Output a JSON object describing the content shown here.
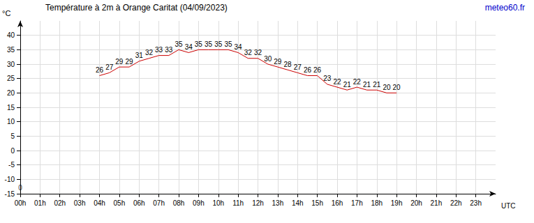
{
  "chart_data": {
    "type": "line",
    "title": "Température à 2m à Orange Caritat (04/09/2023)",
    "source": "meteo60.fr",
    "y_label": "°C",
    "x_label": "UTC",
    "x": [
      4,
      4.5,
      5,
      5.5,
      6,
      6.5,
      7,
      7.5,
      8,
      8.5,
      9,
      9.5,
      10,
      10.5,
      11,
      11.5,
      12,
      12.5,
      13,
      13.5,
      14,
      14.5,
      15,
      15.5,
      16,
      16.5,
      17,
      17.5,
      18,
      18.5,
      19
    ],
    "values": [
      26,
      27,
      29,
      29,
      31,
      32,
      33,
      33,
      35,
      34,
      35,
      35,
      35,
      35,
      34,
      32,
      32,
      30,
      29,
      28,
      27,
      26,
      26,
      23,
      22,
      21,
      22,
      21,
      21,
      20,
      20
    ],
    "color": "#cc0000",
    "data_labels": true,
    "xlim": [
      0,
      24
    ],
    "xticks": [
      {
        "value": 0,
        "label": "00h"
      },
      {
        "value": 1,
        "label": "01h"
      },
      {
        "value": 2,
        "label": "02h"
      },
      {
        "value": 3,
        "label": "03h"
      },
      {
        "value": 4,
        "label": "04h"
      },
      {
        "value": 5,
        "label": "05h"
      },
      {
        "value": 6,
        "label": "06h"
      },
      {
        "value": 7,
        "label": "07h"
      },
      {
        "value": 8,
        "label": "08h"
      },
      {
        "value": 9,
        "label": "09h"
      },
      {
        "value": 10,
        "label": "10h"
      },
      {
        "value": 11,
        "label": "11h"
      },
      {
        "value": 12,
        "label": "12h"
      },
      {
        "value": 13,
        "label": "13h"
      },
      {
        "value": 14,
        "label": "14h"
      },
      {
        "value": 15,
        "label": "15h"
      },
      {
        "value": 16,
        "label": "16h"
      },
      {
        "value": 17,
        "label": "17h"
      },
      {
        "value": 18,
        "label": "18h"
      },
      {
        "value": 19,
        "label": "19h"
      },
      {
        "value": 20,
        "label": "20h"
      },
      {
        "value": 21,
        "label": "21h"
      },
      {
        "value": 22,
        "label": "22h"
      },
      {
        "value": 23,
        "label": "23h"
      }
    ],
    "ylim": [
      -15,
      45
    ],
    "yticks": [
      -15,
      -10,
      -5,
      0,
      5,
      10,
      15,
      20,
      25,
      30,
      35,
      40
    ],
    "grid": true,
    "annotations": [
      {
        "x": 0,
        "y": -13,
        "text": "0"
      }
    ]
  }
}
